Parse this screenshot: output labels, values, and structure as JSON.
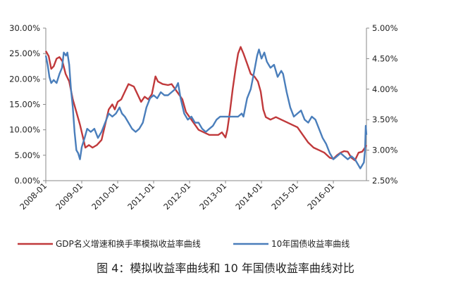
{
  "chart_data": {
    "type": "line",
    "title": "",
    "caption": "图 4：模拟收益率曲线和 10 年国债收益率曲线对比",
    "x_labels": [
      "2008-01",
      "2009-01",
      "2010-01",
      "2011-01",
      "2012-01",
      "2013-01",
      "2014-01",
      "2015-01",
      "2016-01"
    ],
    "x_range": [
      2008.0,
      2016.92
    ],
    "left_axis": {
      "ticks": [
        "0.00%",
        "5.00%",
        "10.00%",
        "15.00%",
        "20.00%",
        "25.00%",
        "30.00%"
      ],
      "range": [
        0,
        30
      ]
    },
    "right_axis": {
      "ticks": [
        "2.50%",
        "3.00%",
        "3.50%",
        "4.00%",
        "4.50%",
        "5.00%"
      ],
      "range": [
        2.5,
        5.0
      ]
    },
    "grid": false,
    "legend_position": "bottom",
    "colors": {
      "series_red": "#c0393b",
      "series_blue": "#4a7ebb",
      "axis": "#888888"
    },
    "series": [
      {
        "name": "GDP名义增速和换手率模拟收益率曲线",
        "axis": "left",
        "color": "#c0393b",
        "points": [
          [
            2008.0,
            25.5
          ],
          [
            2008.08,
            24.5
          ],
          [
            2008.15,
            22.0
          ],
          [
            2008.22,
            22.5
          ],
          [
            2008.3,
            24.0
          ],
          [
            2008.38,
            24.3
          ],
          [
            2008.46,
            23.5
          ],
          [
            2008.55,
            21.0
          ],
          [
            2008.65,
            19.5
          ],
          [
            2008.75,
            16.0
          ],
          [
            2008.85,
            13.5
          ],
          [
            2008.95,
            11.0
          ],
          [
            2009.05,
            8.0
          ],
          [
            2009.1,
            6.5
          ],
          [
            2009.2,
            7.0
          ],
          [
            2009.3,
            6.5
          ],
          [
            2009.42,
            7.0
          ],
          [
            2009.55,
            8.0
          ],
          [
            2009.65,
            11.0
          ],
          [
            2009.75,
            14.0
          ],
          [
            2009.85,
            15.0
          ],
          [
            2009.92,
            14.0
          ],
          [
            2010.0,
            15.5
          ],
          [
            2010.1,
            16.0
          ],
          [
            2010.2,
            17.5
          ],
          [
            2010.3,
            19.0
          ],
          [
            2010.45,
            18.5
          ],
          [
            2010.55,
            17.0
          ],
          [
            2010.65,
            15.5
          ],
          [
            2010.75,
            16.5
          ],
          [
            2010.85,
            16.0
          ],
          [
            2010.95,
            17.0
          ],
          [
            2011.05,
            20.5
          ],
          [
            2011.12,
            19.5
          ],
          [
            2011.25,
            19.0
          ],
          [
            2011.4,
            18.8
          ],
          [
            2011.5,
            19.0
          ],
          [
            2011.6,
            18.0
          ],
          [
            2011.7,
            17.0
          ],
          [
            2011.8,
            16.0
          ],
          [
            2011.9,
            13.5
          ],
          [
            2012.0,
            12.5
          ],
          [
            2012.1,
            11.5
          ],
          [
            2012.25,
            10.0
          ],
          [
            2012.4,
            9.5
          ],
          [
            2012.55,
            9.0
          ],
          [
            2012.7,
            9.0
          ],
          [
            2012.8,
            9.0
          ],
          [
            2012.9,
            9.5
          ],
          [
            2013.0,
            8.5
          ],
          [
            2013.05,
            10.0
          ],
          [
            2013.12,
            13.5
          ],
          [
            2013.2,
            18.0
          ],
          [
            2013.28,
            22.0
          ],
          [
            2013.35,
            25.0
          ],
          [
            2013.42,
            26.3
          ],
          [
            2013.5,
            25.0
          ],
          [
            2013.6,
            23.0
          ],
          [
            2013.7,
            21.0
          ],
          [
            2013.8,
            20.5
          ],
          [
            2013.9,
            19.5
          ],
          [
            2013.98,
            17.5
          ],
          [
            2014.05,
            14.0
          ],
          [
            2014.12,
            12.5
          ],
          [
            2014.25,
            12.0
          ],
          [
            2014.4,
            12.5
          ],
          [
            2014.55,
            12.0
          ],
          [
            2014.7,
            11.5
          ],
          [
            2014.85,
            11.0
          ],
          [
            2015.0,
            10.5
          ],
          [
            2015.15,
            9.0
          ],
          [
            2015.3,
            7.5
          ],
          [
            2015.45,
            6.5
          ],
          [
            2015.6,
            6.0
          ],
          [
            2015.75,
            5.5
          ],
          [
            2015.9,
            4.5
          ],
          [
            2016.0,
            4.3
          ],
          [
            2016.1,
            5.0
          ],
          [
            2016.2,
            5.5
          ],
          [
            2016.3,
            5.8
          ],
          [
            2016.4,
            5.7
          ],
          [
            2016.5,
            4.5
          ],
          [
            2016.6,
            4.0
          ],
          [
            2016.7,
            5.5
          ],
          [
            2016.8,
            5.7
          ],
          [
            2016.88,
            6.5
          ],
          [
            2016.92,
            7.0
          ]
        ]
      },
      {
        "name": "10年国债收益率曲线",
        "axis": "right",
        "color": "#4a7ebb",
        "points": [
          [
            2008.0,
            4.55
          ],
          [
            2008.05,
            4.4
          ],
          [
            2008.1,
            4.2
          ],
          [
            2008.15,
            4.1
          ],
          [
            2008.22,
            4.15
          ],
          [
            2008.3,
            4.1
          ],
          [
            2008.38,
            4.25
          ],
          [
            2008.45,
            4.35
          ],
          [
            2008.5,
            4.6
          ],
          [
            2008.56,
            4.55
          ],
          [
            2008.6,
            4.6
          ],
          [
            2008.65,
            4.4
          ],
          [
            2008.7,
            4.0
          ],
          [
            2008.75,
            3.7
          ],
          [
            2008.8,
            3.3
          ],
          [
            2008.85,
            3.0
          ],
          [
            2008.9,
            2.95
          ],
          [
            2008.95,
            2.85
          ],
          [
            2009.0,
            3.05
          ],
          [
            2009.08,
            3.2
          ],
          [
            2009.15,
            3.35
          ],
          [
            2009.25,
            3.3
          ],
          [
            2009.35,
            3.35
          ],
          [
            2009.45,
            3.2
          ],
          [
            2009.55,
            3.3
          ],
          [
            2009.65,
            3.45
          ],
          [
            2009.75,
            3.6
          ],
          [
            2009.85,
            3.55
          ],
          [
            2009.95,
            3.6
          ],
          [
            2010.05,
            3.7
          ],
          [
            2010.12,
            3.6
          ],
          [
            2010.2,
            3.55
          ],
          [
            2010.3,
            3.45
          ],
          [
            2010.4,
            3.35
          ],
          [
            2010.5,
            3.3
          ],
          [
            2010.6,
            3.35
          ],
          [
            2010.7,
            3.45
          ],
          [
            2010.8,
            3.7
          ],
          [
            2010.9,
            3.85
          ],
          [
            2011.0,
            3.9
          ],
          [
            2011.1,
            3.85
          ],
          [
            2011.2,
            3.95
          ],
          [
            2011.3,
            3.9
          ],
          [
            2011.4,
            3.9
          ],
          [
            2011.5,
            3.95
          ],
          [
            2011.6,
            4.0
          ],
          [
            2011.68,
            4.1
          ],
          [
            2011.75,
            3.85
          ],
          [
            2011.85,
            3.6
          ],
          [
            2011.95,
            3.5
          ],
          [
            2012.05,
            3.55
          ],
          [
            2012.15,
            3.45
          ],
          [
            2012.25,
            3.45
          ],
          [
            2012.35,
            3.35
          ],
          [
            2012.45,
            3.3
          ],
          [
            2012.55,
            3.35
          ],
          [
            2012.65,
            3.4
          ],
          [
            2012.75,
            3.5
          ],
          [
            2012.85,
            3.55
          ],
          [
            2013.0,
            3.55
          ],
          [
            2013.12,
            3.55
          ],
          [
            2013.25,
            3.55
          ],
          [
            2013.35,
            3.55
          ],
          [
            2013.45,
            3.6
          ],
          [
            2013.5,
            3.55
          ],
          [
            2013.55,
            3.7
          ],
          [
            2013.6,
            3.85
          ],
          [
            2013.7,
            4.0
          ],
          [
            2013.8,
            4.3
          ],
          [
            2013.88,
            4.55
          ],
          [
            2013.93,
            4.65
          ],
          [
            2014.0,
            4.5
          ],
          [
            2014.08,
            4.6
          ],
          [
            2014.15,
            4.45
          ],
          [
            2014.25,
            4.35
          ],
          [
            2014.35,
            4.4
          ],
          [
            2014.45,
            4.2
          ],
          [
            2014.55,
            4.3
          ],
          [
            2014.6,
            4.25
          ],
          [
            2014.7,
            3.95
          ],
          [
            2014.8,
            3.7
          ],
          [
            2014.9,
            3.55
          ],
          [
            2015.0,
            3.6
          ],
          [
            2015.1,
            3.65
          ],
          [
            2015.2,
            3.5
          ],
          [
            2015.3,
            3.45
          ],
          [
            2015.4,
            3.55
          ],
          [
            2015.5,
            3.5
          ],
          [
            2015.6,
            3.35
          ],
          [
            2015.7,
            3.2
          ],
          [
            2015.8,
            3.1
          ],
          [
            2015.9,
            2.95
          ],
          [
            2016.0,
            2.85
          ],
          [
            2016.1,
            2.9
          ],
          [
            2016.2,
            2.95
          ],
          [
            2016.3,
            2.9
          ],
          [
            2016.4,
            2.85
          ],
          [
            2016.5,
            2.9
          ],
          [
            2016.6,
            2.85
          ],
          [
            2016.7,
            2.75
          ],
          [
            2016.75,
            2.7
          ],
          [
            2016.8,
            2.75
          ],
          [
            2016.85,
            2.8
          ],
          [
            2016.88,
            3.0
          ],
          [
            2016.9,
            3.4
          ],
          [
            2016.92,
            3.25
          ]
        ]
      }
    ]
  }
}
